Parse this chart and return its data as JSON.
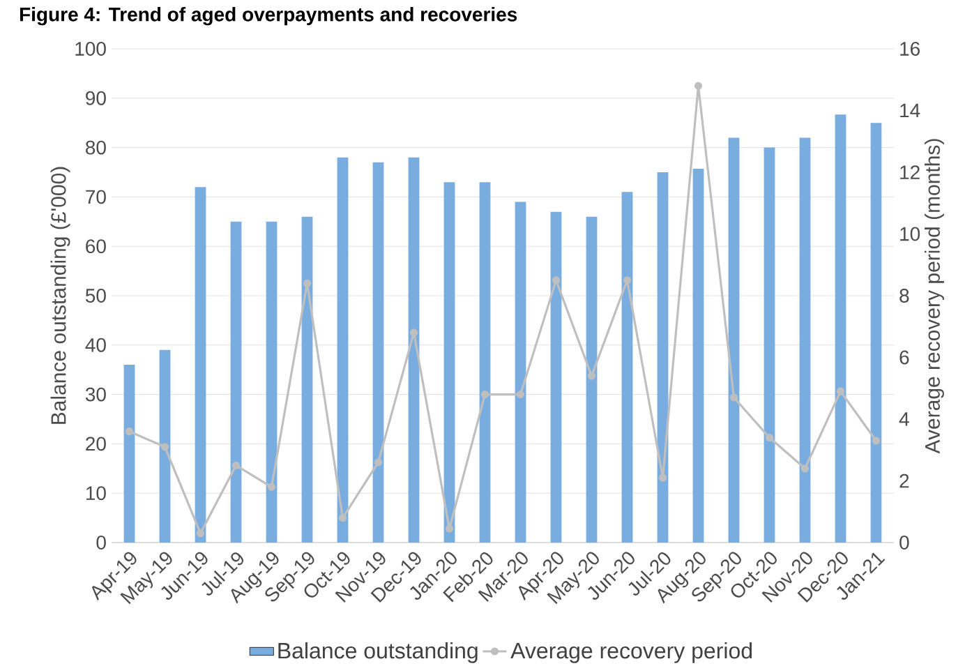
{
  "chart_data": {
    "type": "bar",
    "title": "Figure 4: Trend of aged overpayments and recoveries",
    "categories": [
      "Apr-19",
      "May-19",
      "Jun-19",
      "Jul-19",
      "Aug-19",
      "Sep-19",
      "Oct-19",
      "Nov-19",
      "Dec-19",
      "Jan-20",
      "Feb-20",
      "Mar-20",
      "Apr-20",
      "May-20",
      "Jun-20",
      "Jul-20",
      "Aug-20",
      "Sep-20",
      "Oct-20",
      "Nov-20",
      "Dec-20",
      "Jan-21"
    ],
    "series": [
      {
        "name": "Balance outstanding",
        "color": "#7aaddf",
        "values": [
          36,
          39,
          72,
          65,
          65,
          66,
          78,
          77,
          78,
          73,
          73,
          69,
          67,
          66,
          71,
          75,
          75.7,
          82,
          80,
          82,
          86.7,
          85
        ]
      },
      {
        "name": "Average recovery period",
        "type": "line",
        "axis": "y2",
        "color": "#bfbfbf",
        "marker": "circle",
        "values": [
          3.6,
          3.1,
          0.3,
          2.5,
          1.8,
          8.4,
          0.8,
          2.6,
          6.8,
          0.45,
          4.8,
          4.8,
          8.5,
          5.4,
          8.5,
          2.1,
          14.8,
          4.7,
          3.4,
          2.4,
          4.9,
          3.3
        ]
      }
    ],
    "ylabel": "Balance outstanding (£'000)",
    "y2label": "Average  recovery period (months)",
    "ylim": [
      0,
      100
    ],
    "yticks": [
      0,
      10,
      20,
      30,
      40,
      50,
      60,
      70,
      80,
      90,
      100
    ],
    "y2lim": [
      0,
      16
    ],
    "y2ticks": [
      0,
      2,
      4,
      6,
      8,
      10,
      12,
      14,
      16
    ],
    "grid": "y",
    "legend": "bottom"
  }
}
